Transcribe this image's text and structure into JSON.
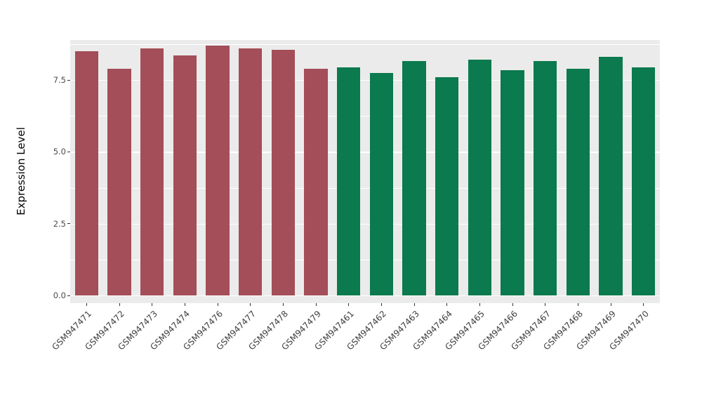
{
  "chart_data": {
    "type": "bar",
    "title": "",
    "xlabel": "",
    "ylabel": "Expression Level",
    "ylim": [
      0,
      9.1
    ],
    "grid": "on",
    "legend_position": "none",
    "panel_background_color": "#EBEBEB",
    "grid_color": "#FFFFFF",
    "ytick_values": [
      0,
      2.5,
      5.0,
      7.5
    ],
    "ytick_labels": [
      "0.0",
      "2.5",
      "5.0",
      "7.5"
    ],
    "ytick_minor_values": [
      1.25,
      3.75,
      6.25,
      8.75
    ],
    "categories": [
      "GSM947471",
      "GSM947472",
      "GSM947473",
      "GSM947474",
      "GSM947476",
      "GSM947477",
      "GSM947478",
      "GSM947479",
      "GSM947461",
      "GSM947462",
      "GSM947463",
      "GSM947464",
      "GSM947465",
      "GSM947466",
      "GSM947467",
      "GSM947468",
      "GSM947469",
      "GSM947470"
    ],
    "values": [
      8.5,
      7.9,
      8.6,
      8.35,
      8.7,
      8.6,
      8.55,
      7.9,
      7.95,
      7.75,
      8.15,
      7.6,
      8.2,
      7.85,
      8.15,
      7.9,
      8.3,
      7.95
    ],
    "bar_groups": [
      "group1",
      "group1",
      "group1",
      "group1",
      "group1",
      "group1",
      "group1",
      "group1",
      "group2",
      "group2",
      "group2",
      "group2",
      "group2",
      "group2",
      "group2",
      "group2",
      "group2",
      "group2"
    ],
    "group_colors": {
      "group1": "#A34E58",
      "group2": "#0B7A4E"
    }
  }
}
